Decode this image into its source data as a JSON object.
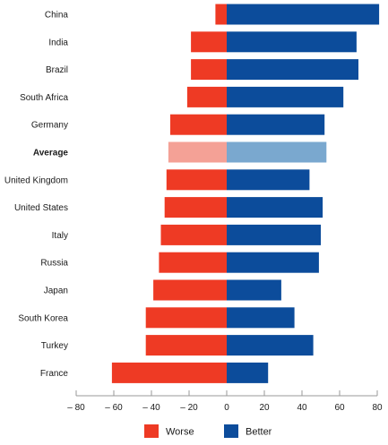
{
  "chart_data": {
    "type": "bar",
    "orientation": "horizontal",
    "stacked": "diverging",
    "categories": [
      "China",
      "India",
      "Brazil",
      "South Africa",
      "Germany",
      "Average",
      "United Kingdom",
      "United States",
      "Italy",
      "Russia",
      "Japan",
      "South Korea",
      "Turkey",
      "France"
    ],
    "highlight_category": "Average",
    "series": [
      {
        "name": "Worse",
        "color": "#ee3a24",
        "highlight_color": "#f4a196",
        "values": [
          -6,
          -19,
          -19,
          -21,
          -30,
          -31,
          -32,
          -33,
          -35,
          -36,
          -39,
          -43,
          -43,
          -61
        ]
      },
      {
        "name": "Better",
        "color": "#0c4c9b",
        "highlight_color": "#7aa8cf",
        "values": [
          81,
          69,
          70,
          62,
          52,
          53,
          44,
          51,
          50,
          49,
          29,
          36,
          46,
          22
        ]
      }
    ],
    "xlim": [
      -80,
      80
    ],
    "xticks": [
      -80,
      -60,
      -40,
      -20,
      0,
      20,
      40,
      60,
      80
    ],
    "xtick_labels": [
      "– 80",
      "– 60",
      "– 40",
      "– 20",
      "0",
      "20",
      "40",
      "60",
      "80"
    ],
    "grid": false,
    "legend": {
      "placement": "bottom-center",
      "entries": [
        {
          "label": "Worse",
          "color": "#ee3a24"
        },
        {
          "label": "Better",
          "color": "#0c4c9b"
        }
      ]
    }
  }
}
